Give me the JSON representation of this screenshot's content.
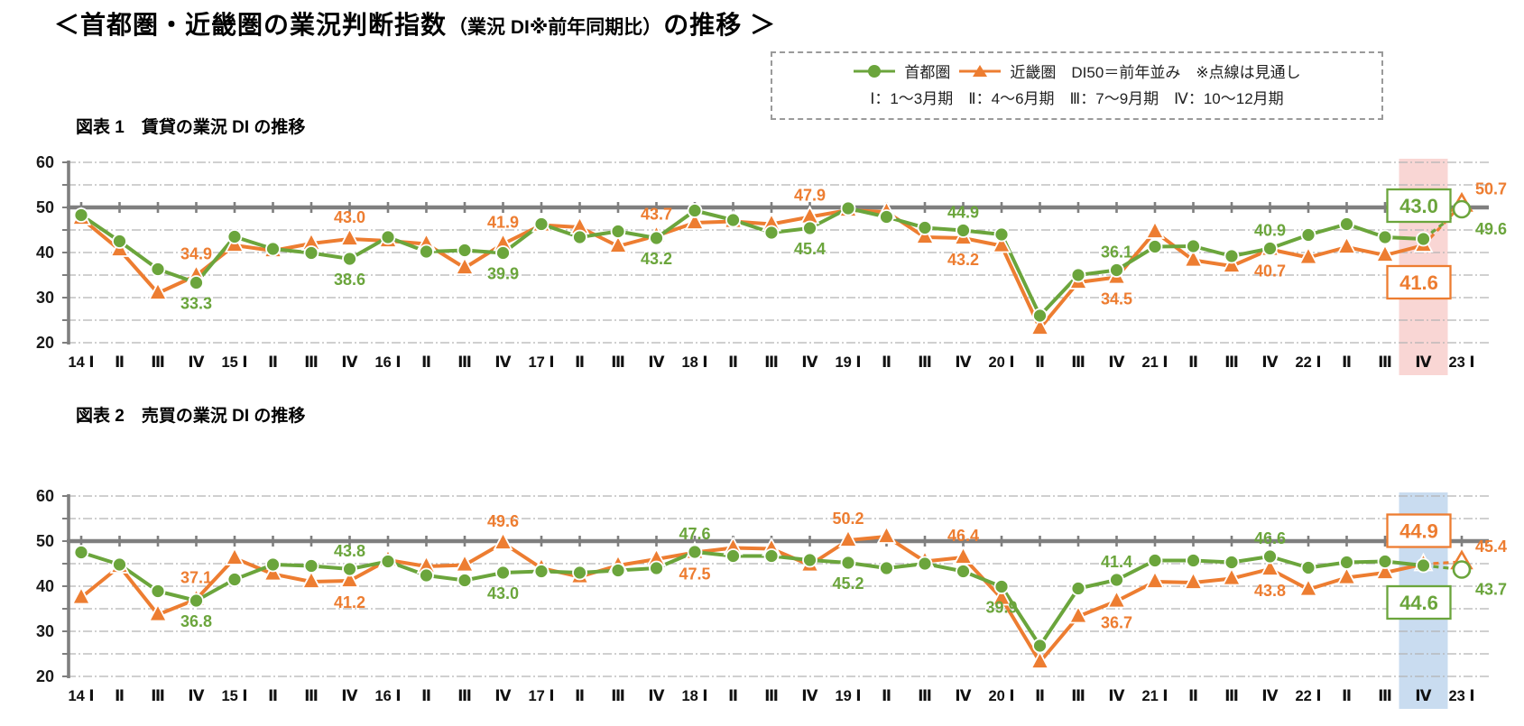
{
  "title": {
    "main": "＜首都圏・近畿圏の業況判断指数",
    "paren": "（業況 DI※前年同期比）",
    "tail": "の推移 ＞"
  },
  "legend": {
    "series1": "首都圏",
    "series2": "近畿圏",
    "note_di50": "DI50＝前年並み",
    "note_dotted": "※点線は見通し",
    "quarter_note": "Ⅰ：1～3月期　Ⅱ：4～6月期　Ⅲ：7～9月期　Ⅳ：10～12月期"
  },
  "colors": {
    "shutoken": "#6ba53c",
    "kinkiken": "#ed7d31",
    "axis_gray": "#7f7f7f",
    "gridline": "#b3b3b3",
    "x_label": "#111111",
    "band_chart1": "#f9d6d4",
    "band_chart2": "#c9dcf0"
  },
  "chart_data": [
    {
      "type": "line",
      "title": "図表 1　賃貸の業況 DI の推移",
      "ylim": [
        20,
        60
      ],
      "y_ticks": [
        60,
        50,
        40,
        30,
        20
      ],
      "grid": true,
      "baseline_value": 50,
      "categories": [
        "14 Ⅰ",
        "Ⅱ",
        "Ⅲ",
        "Ⅳ",
        "15 Ⅰ",
        "Ⅱ",
        "Ⅲ",
        "Ⅳ",
        "16 Ⅰ",
        "Ⅱ",
        "Ⅲ",
        "Ⅳ",
        "17 Ⅰ",
        "Ⅱ",
        "Ⅲ",
        "Ⅳ",
        "18 Ⅰ",
        "Ⅱ",
        "Ⅲ",
        "Ⅳ",
        "19 Ⅰ",
        "Ⅱ",
        "Ⅲ",
        "Ⅳ",
        "20 Ⅰ",
        "Ⅱ",
        "Ⅲ",
        "Ⅳ",
        "21 Ⅰ",
        "Ⅱ",
        "Ⅲ",
        "Ⅳ",
        "22 Ⅰ",
        "Ⅱ",
        "Ⅲ",
        "Ⅳ",
        "23 Ⅰ"
      ],
      "series": [
        {
          "name": "首都圏",
          "marker": "circle",
          "color": "#6ba53c",
          "values": [
            48.3,
            42.5,
            36.3,
            33.3,
            43.5,
            40.8,
            39.9,
            38.6,
            43.4,
            40.2,
            40.5,
            39.9,
            46.3,
            43.4,
            44.7,
            43.2,
            49.3,
            47.2,
            44.4,
            45.4,
            49.8,
            47.9,
            45.5,
            44.9,
            44.0,
            26.0,
            35.0,
            36.1,
            41.3,
            41.4,
            39.2,
            40.9,
            43.9,
            46.3,
            43.4,
            43.0,
            49.6
          ]
        },
        {
          "name": "近畿圏",
          "marker": "triangle",
          "color": "#ed7d31",
          "values": [
            47.6,
            40.6,
            31.0,
            34.9,
            41.6,
            40.4,
            42.0,
            43.0,
            42.6,
            41.9,
            36.6,
            41.9,
            46.1,
            45.6,
            41.4,
            43.7,
            46.6,
            46.9,
            46.3,
            47.9,
            49.4,
            49.0,
            43.4,
            43.2,
            41.5,
            23.2,
            33.4,
            34.5,
            44.6,
            38.3,
            37.0,
            40.7,
            38.9,
            41.2,
            39.4,
            41.6,
            50.7
          ]
        }
      ],
      "forecast_from_index": 35,
      "highlight_index": 35,
      "highlight_color": "#f9d6d4",
      "point_labels": [
        {
          "series": 1,
          "index": 3,
          "text": "34.9",
          "style": "above"
        },
        {
          "series": 0,
          "index": 3,
          "text": "33.3",
          "style": "below"
        },
        {
          "series": 1,
          "index": 7,
          "text": "43.0",
          "style": "above"
        },
        {
          "series": 0,
          "index": 7,
          "text": "38.6",
          "style": "below"
        },
        {
          "series": 1,
          "index": 11,
          "text": "41.9",
          "style": "above"
        },
        {
          "series": 0,
          "index": 11,
          "text": "39.9",
          "style": "below"
        },
        {
          "series": 1,
          "index": 15,
          "text": "43.7",
          "style": "above"
        },
        {
          "series": 0,
          "index": 15,
          "text": "43.2",
          "style": "below"
        },
        {
          "series": 1,
          "index": 19,
          "text": "47.9",
          "style": "above"
        },
        {
          "series": 0,
          "index": 19,
          "text": "45.4",
          "style": "below"
        },
        {
          "series": 0,
          "index": 23,
          "text": "44.9",
          "style": "above"
        },
        {
          "series": 1,
          "index": 23,
          "text": "43.2",
          "style": "below"
        },
        {
          "series": 0,
          "index": 27,
          "text": "36.1",
          "style": "above"
        },
        {
          "series": 1,
          "index": 27,
          "text": "34.5",
          "style": "below"
        },
        {
          "series": 0,
          "index": 31,
          "text": "40.9",
          "style": "above"
        },
        {
          "series": 1,
          "index": 31,
          "text": "40.7",
          "style": "below"
        },
        {
          "series": 0,
          "index": 35,
          "text": "43.0",
          "style": "box-above"
        },
        {
          "series": 1,
          "index": 35,
          "text": "41.6",
          "style": "box-below"
        },
        {
          "series": 1,
          "index": 36,
          "text": "50.7",
          "style": "right-above"
        },
        {
          "series": 0,
          "index": 36,
          "text": "49.6",
          "style": "right-below"
        }
      ]
    },
    {
      "type": "line",
      "title": "図表 2　売買の業況 DI の推移",
      "ylim": [
        20,
        60
      ],
      "y_ticks": [
        60,
        50,
        40,
        30,
        20
      ],
      "grid": true,
      "baseline_value": 50,
      "categories": [
        "14 Ⅰ",
        "Ⅱ",
        "Ⅲ",
        "Ⅳ",
        "15 Ⅰ",
        "Ⅱ",
        "Ⅲ",
        "Ⅳ",
        "16 Ⅰ",
        "Ⅱ",
        "Ⅲ",
        "Ⅳ",
        "17 Ⅰ",
        "Ⅱ",
        "Ⅲ",
        "Ⅳ",
        "18 Ⅰ",
        "Ⅱ",
        "Ⅲ",
        "Ⅳ",
        "19 Ⅰ",
        "Ⅱ",
        "Ⅲ",
        "Ⅳ",
        "20 Ⅰ",
        "Ⅱ",
        "Ⅲ",
        "Ⅳ",
        "21 Ⅰ",
        "Ⅱ",
        "Ⅲ",
        "Ⅳ",
        "22 Ⅰ",
        "Ⅱ",
        "Ⅲ",
        "Ⅳ",
        "23 Ⅰ"
      ],
      "series": [
        {
          "name": "首都圏",
          "marker": "circle",
          "color": "#6ba53c",
          "values": [
            47.5,
            44.8,
            38.9,
            36.8,
            41.5,
            44.8,
            44.5,
            43.8,
            45.5,
            42.4,
            41.3,
            43.0,
            43.3,
            43.0,
            43.5,
            44.0,
            47.6,
            46.7,
            46.7,
            45.8,
            45.2,
            44.0,
            45.0,
            43.3,
            39.9,
            26.8,
            39.5,
            41.4,
            45.7,
            45.7,
            45.3,
            46.6,
            44.1,
            45.3,
            45.5,
            44.6,
            43.7
          ]
        },
        {
          "name": "近畿圏",
          "marker": "triangle",
          "color": "#ed7d31",
          "values": [
            37.5,
            44.4,
            33.7,
            37.1,
            46.2,
            42.7,
            41.0,
            41.2,
            45.8,
            44.4,
            44.7,
            49.6,
            44.0,
            42.1,
            44.6,
            46.0,
            47.5,
            48.5,
            48.3,
            44.7,
            50.2,
            51.0,
            45.5,
            46.4,
            37.3,
            23.2,
            33.3,
            36.7,
            41.0,
            40.8,
            41.7,
            43.8,
            39.3,
            41.9,
            43.0,
            44.9,
            45.4
          ]
        }
      ],
      "forecast_from_index": 35,
      "highlight_index": 35,
      "highlight_color": "#c9dcf0",
      "point_labels": [
        {
          "series": 1,
          "index": 3,
          "text": "37.1",
          "style": "above"
        },
        {
          "series": 0,
          "index": 3,
          "text": "36.8",
          "style": "below"
        },
        {
          "series": 0,
          "index": 7,
          "text": "43.8",
          "style": "above"
        },
        {
          "series": 1,
          "index": 7,
          "text": "41.2",
          "style": "below"
        },
        {
          "series": 1,
          "index": 11,
          "text": "49.6",
          "style": "above"
        },
        {
          "series": 0,
          "index": 11,
          "text": "43.0",
          "style": "below"
        },
        {
          "series": 0,
          "index": 16,
          "text": "47.6",
          "style": "above"
        },
        {
          "series": 1,
          "index": 16,
          "text": "47.5",
          "style": "below"
        },
        {
          "series": 1,
          "index": 20,
          "text": "50.2",
          "style": "above"
        },
        {
          "series": 0,
          "index": 20,
          "text": "45.2",
          "style": "below"
        },
        {
          "series": 1,
          "index": 23,
          "text": "46.4",
          "style": "above"
        },
        {
          "series": 0,
          "index": 24,
          "text": "39.9",
          "style": "below"
        },
        {
          "series": 0,
          "index": 27,
          "text": "41.4",
          "style": "above"
        },
        {
          "series": 1,
          "index": 27,
          "text": "36.7",
          "style": "below"
        },
        {
          "series": 0,
          "index": 31,
          "text": "46.6",
          "style": "above"
        },
        {
          "series": 1,
          "index": 31,
          "text": "43.8",
          "style": "below"
        },
        {
          "series": 1,
          "index": 35,
          "text": "44.9",
          "style": "box-above"
        },
        {
          "series": 0,
          "index": 35,
          "text": "44.6",
          "style": "box-below"
        },
        {
          "series": 1,
          "index": 36,
          "text": "45.4",
          "style": "right-above"
        },
        {
          "series": 0,
          "index": 36,
          "text": "43.7",
          "style": "right-below"
        }
      ]
    }
  ]
}
